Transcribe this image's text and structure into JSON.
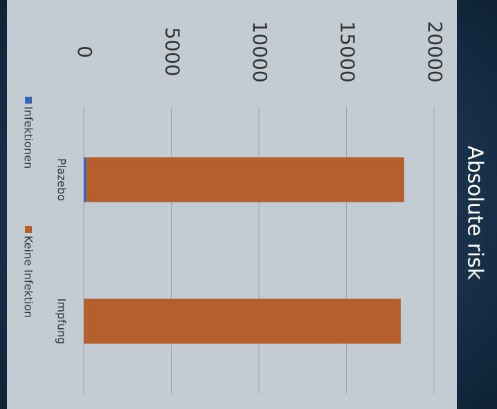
{
  "chart_data": {
    "type": "bar",
    "stacked": true,
    "title": "Absolute risk",
    "categories": [
      "Plazebo",
      "Impfung"
    ],
    "series": [
      {
        "name": "Infektionen",
        "color": "#3a64b8",
        "values": [
          150,
          10
        ]
      },
      {
        "name": "Keine Infektion",
        "color": "#b5602c",
        "values": [
          18150,
          18090
        ]
      }
    ],
    "ylim": [
      0,
      20000
    ],
    "yticks": [
      0,
      5000,
      10000,
      15000,
      20000
    ],
    "grid": true,
    "legend": "bottom"
  }
}
